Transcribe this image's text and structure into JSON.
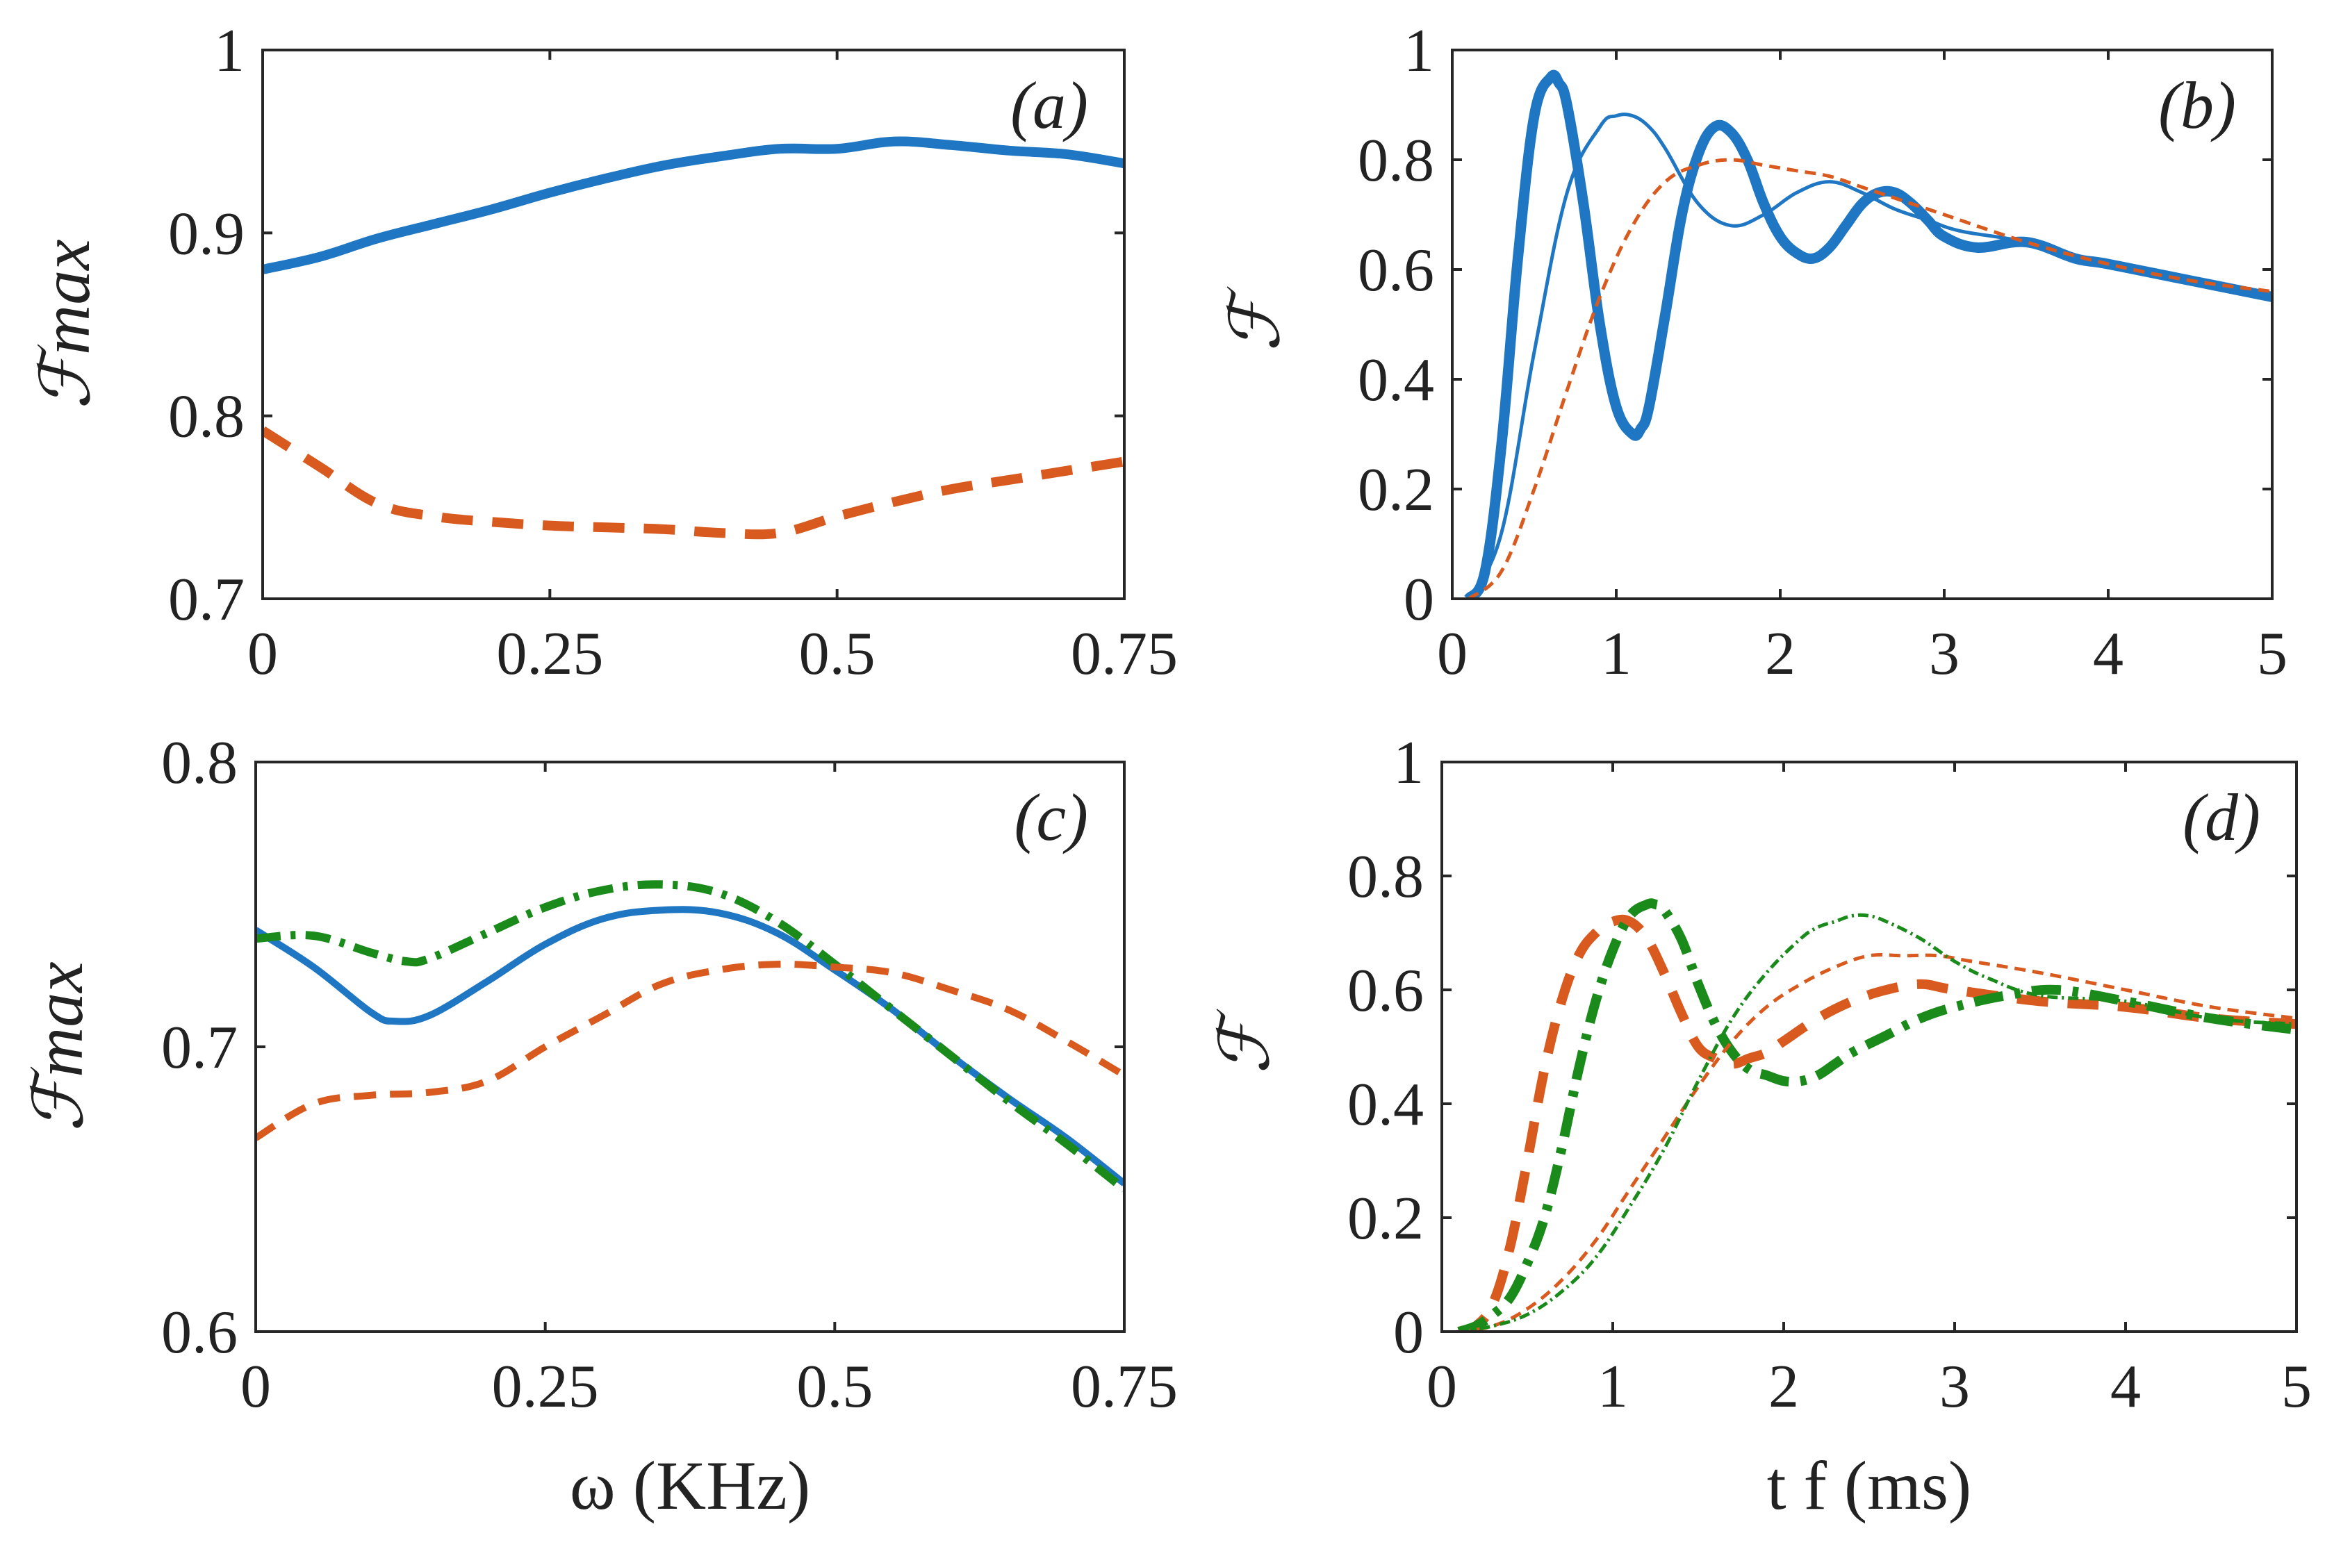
{
  "figure": {
    "title": ""
  },
  "chart_data": [
    {
      "panel": "a",
      "type": "line",
      "panel_label": "(a)",
      "xlabel": "",
      "ylabel": "ℱmax",
      "xlim": [
        0,
        0.75
      ],
      "ylim": [
        0.7,
        1.0
      ],
      "xticks": [
        0,
        0.25,
        0.5,
        0.75
      ],
      "xtick_labels": [
        "0",
        "0.25",
        "0.5",
        "0.75"
      ],
      "yticks": [
        0.7,
        0.8,
        0.9,
        1.0
      ],
      "ytick_labels": [
        "0.7",
        "0.8",
        "0.9",
        "1"
      ],
      "series": [
        {
          "name": "solid",
          "color": "#1f77c4",
          "style": "solid",
          "width": 14,
          "x": [
            0,
            0.05,
            0.1,
            0.15,
            0.2,
            0.25,
            0.3,
            0.35,
            0.4,
            0.45,
            0.5,
            0.55,
            0.6,
            0.65,
            0.7,
            0.75
          ],
          "y": [
            0.88,
            0.887,
            0.897,
            0.905,
            0.913,
            0.922,
            0.93,
            0.937,
            0.942,
            0.946,
            0.946,
            0.95,
            0.948,
            0.945,
            0.943,
            0.938
          ]
        },
        {
          "name": "dashed",
          "color": "#d85a1e",
          "style": "dashed",
          "width": 14,
          "x": [
            0,
            0.05,
            0.1,
            0.15,
            0.2,
            0.25,
            0.3,
            0.35,
            0.4,
            0.45,
            0.5,
            0.55,
            0.6,
            0.65,
            0.7,
            0.75
          ],
          "y": [
            0.792,
            0.772,
            0.752,
            0.745,
            0.742,
            0.74,
            0.739,
            0.738,
            0.736,
            0.736,
            0.745,
            0.753,
            0.76,
            0.765,
            0.77,
            0.775
          ]
        }
      ]
    },
    {
      "panel": "b",
      "type": "line",
      "panel_label": "(b)",
      "xlabel": "",
      "ylabel": "ℱ",
      "xlim": [
        0,
        5
      ],
      "ylim": [
        0,
        1
      ],
      "xticks": [
        0,
        1,
        2,
        3,
        4,
        5
      ],
      "xtick_labels": [
        "0",
        "1",
        "2",
        "3",
        "4",
        "5"
      ],
      "yticks": [
        0,
        0.2,
        0.4,
        0.6,
        0.8,
        1.0
      ],
      "ytick_labels": [
        "0",
        "0.2",
        "0.4",
        "0.6",
        "0.8",
        "1"
      ],
      "series": [
        {
          "name": "thick solid",
          "color": "#1f77c4",
          "style": "solid",
          "width": 15,
          "x": [
            0.1,
            0.2,
            0.3,
            0.4,
            0.5,
            0.6,
            0.65,
            0.7,
            0.8,
            0.9,
            1.0,
            1.1,
            1.15,
            1.2,
            1.3,
            1.4,
            1.5,
            1.6,
            1.7,
            1.8,
            1.9,
            2.0,
            2.1,
            2.2,
            2.3,
            2.4,
            2.5,
            2.6,
            2.7,
            2.8,
            2.9,
            3.0,
            3.2,
            3.5,
            3.8,
            4.0,
            4.5,
            5.0
          ],
          "y": [
            0.0,
            0.05,
            0.28,
            0.62,
            0.88,
            0.95,
            0.94,
            0.9,
            0.72,
            0.5,
            0.35,
            0.3,
            0.31,
            0.35,
            0.52,
            0.7,
            0.81,
            0.86,
            0.85,
            0.8,
            0.72,
            0.66,
            0.63,
            0.62,
            0.64,
            0.68,
            0.72,
            0.74,
            0.74,
            0.72,
            0.69,
            0.66,
            0.64,
            0.65,
            0.62,
            0.61,
            0.58,
            0.55
          ]
        },
        {
          "name": "thin solid",
          "color": "#1f77c4",
          "style": "solid",
          "width": 5,
          "x": [
            0.1,
            0.3,
            0.5,
            0.7,
            0.9,
            1.0,
            1.1,
            1.2,
            1.3,
            1.5,
            1.7,
            1.9,
            2.1,
            2.3,
            2.5,
            2.7,
            2.9,
            3.1,
            3.5,
            4.0,
            4.5,
            5.0
          ],
          "y": [
            0.0,
            0.12,
            0.45,
            0.74,
            0.86,
            0.88,
            0.88,
            0.86,
            0.82,
            0.72,
            0.68,
            0.7,
            0.74,
            0.76,
            0.74,
            0.71,
            0.69,
            0.67,
            0.65,
            0.61,
            0.58,
            0.55
          ]
        },
        {
          "name": "thin dashed",
          "color": "#d85a1e",
          "style": "dashed",
          "width": 5,
          "x": [
            0.1,
            0.3,
            0.5,
            0.7,
            0.9,
            1.1,
            1.3,
            1.5,
            1.7,
            1.9,
            2.1,
            2.3,
            2.5,
            2.7,
            3.0,
            3.5,
            4.0,
            4.5,
            5.0
          ],
          "y": [
            0.0,
            0.05,
            0.2,
            0.38,
            0.55,
            0.68,
            0.76,
            0.79,
            0.8,
            0.79,
            0.78,
            0.77,
            0.75,
            0.73,
            0.7,
            0.65,
            0.61,
            0.58,
            0.56
          ]
        }
      ]
    },
    {
      "panel": "c",
      "type": "line",
      "panel_label": "(c)",
      "xlabel": "ω (KHz)",
      "ylabel": "ℱmax",
      "xlim": [
        0,
        0.75
      ],
      "ylim": [
        0.6,
        0.8
      ],
      "xticks": [
        0,
        0.25,
        0.5,
        0.75
      ],
      "xtick_labels": [
        "0",
        "0.25",
        "0.5",
        "0.75"
      ],
      "yticks": [
        0.6,
        0.7,
        0.8
      ],
      "ytick_labels": [
        "0.6",
        "0.7",
        "0.8"
      ],
      "series": [
        {
          "name": "solid",
          "color": "#1f77c4",
          "style": "solid",
          "width": 10,
          "x": [
            0,
            0.05,
            0.1,
            0.12,
            0.15,
            0.2,
            0.25,
            0.3,
            0.35,
            0.4,
            0.45,
            0.5,
            0.55,
            0.6,
            0.65,
            0.7,
            0.75
          ],
          "y": [
            0.741,
            0.728,
            0.712,
            0.709,
            0.711,
            0.723,
            0.736,
            0.745,
            0.748,
            0.747,
            0.74,
            0.727,
            0.713,
            0.697,
            0.682,
            0.668,
            0.652
          ]
        },
        {
          "name": "dash-dot",
          "color": "#1a8a1a",
          "style": "dashdot",
          "width": 12,
          "x": [
            0,
            0.05,
            0.1,
            0.13,
            0.15,
            0.2,
            0.25,
            0.3,
            0.35,
            0.4,
            0.45,
            0.5,
            0.55,
            0.6,
            0.65,
            0.7,
            0.75
          ],
          "y": [
            0.738,
            0.739,
            0.733,
            0.73,
            0.731,
            0.74,
            0.749,
            0.755,
            0.757,
            0.754,
            0.744,
            0.729,
            0.713,
            0.697,
            0.681,
            0.666,
            0.65
          ]
        },
        {
          "name": "dashed",
          "color": "#d85a1e",
          "style": "dashed",
          "width": 10,
          "x": [
            0,
            0.05,
            0.1,
            0.15,
            0.2,
            0.25,
            0.3,
            0.35,
            0.4,
            0.45,
            0.5,
            0.55,
            0.6,
            0.65,
            0.7,
            0.75
          ],
          "y": [
            0.668,
            0.68,
            0.683,
            0.684,
            0.688,
            0.7,
            0.711,
            0.722,
            0.727,
            0.729,
            0.728,
            0.726,
            0.72,
            0.713,
            0.702,
            0.69
          ]
        }
      ]
    },
    {
      "panel": "d",
      "type": "line",
      "panel_label": "(d)",
      "xlabel": "t f (ms)",
      "ylabel": "ℱ",
      "xlim": [
        0,
        5
      ],
      "ylim": [
        0,
        1
      ],
      "xticks": [
        0,
        1,
        2,
        3,
        4,
        5
      ],
      "xtick_labels": [
        "0",
        "1",
        "2",
        "3",
        "4",
        "5"
      ],
      "yticks": [
        0,
        0.2,
        0.4,
        0.6,
        0.8,
        1.0
      ],
      "ytick_labels": [
        "0",
        "0.2",
        "0.4",
        "0.6",
        "0.8",
        "1"
      ],
      "series": [
        {
          "name": "thick dashed",
          "color": "#d85a1e",
          "style": "dashed",
          "width": 14,
          "x": [
            0.1,
            0.2,
            0.3,
            0.4,
            0.5,
            0.6,
            0.7,
            0.8,
            0.9,
            1.0,
            1.1,
            1.2,
            1.3,
            1.4,
            1.5,
            1.6,
            1.7,
            1.8,
            1.9,
            2.0,
            2.2,
            2.4,
            2.6,
            2.8,
            3.0,
            3.5,
            4.0,
            4.5,
            5.0
          ],
          "y": [
            0.0,
            0.01,
            0.05,
            0.15,
            0.3,
            0.46,
            0.58,
            0.66,
            0.7,
            0.72,
            0.72,
            0.69,
            0.63,
            0.56,
            0.5,
            0.48,
            0.47,
            0.48,
            0.49,
            0.51,
            0.55,
            0.58,
            0.6,
            0.61,
            0.6,
            0.58,
            0.57,
            0.55,
            0.54
          ]
        },
        {
          "name": "thick dash-dot",
          "color": "#1a8a1a",
          "style": "dashdot",
          "width": 14,
          "x": [
            0.1,
            0.2,
            0.3,
            0.4,
            0.5,
            0.6,
            0.7,
            0.8,
            0.9,
            1.0,
            1.1,
            1.2,
            1.25,
            1.3,
            1.4,
            1.5,
            1.6,
            1.7,
            1.8,
            1.9,
            2.0,
            2.1,
            2.2,
            2.3,
            2.4,
            2.6,
            2.8,
            3.0,
            3.3,
            3.6,
            4.0,
            4.5,
            5.0
          ],
          "y": [
            0.0,
            0.01,
            0.03,
            0.06,
            0.12,
            0.2,
            0.32,
            0.46,
            0.58,
            0.67,
            0.73,
            0.75,
            0.75,
            0.74,
            0.69,
            0.61,
            0.54,
            0.49,
            0.46,
            0.45,
            0.44,
            0.44,
            0.45,
            0.47,
            0.49,
            0.52,
            0.55,
            0.57,
            0.59,
            0.6,
            0.58,
            0.55,
            0.53
          ]
        },
        {
          "name": "thin dashed",
          "color": "#d85a1e",
          "style": "dashed",
          "width": 5,
          "x": [
            0.1,
            0.3,
            0.5,
            0.7,
            0.9,
            1.1,
            1.3,
            1.5,
            1.7,
            1.9,
            2.1,
            2.3,
            2.5,
            2.7,
            2.9,
            3.1,
            3.5,
            4.0,
            4.5,
            5.0
          ],
          "y": [
            0.0,
            0.01,
            0.04,
            0.09,
            0.16,
            0.25,
            0.34,
            0.43,
            0.51,
            0.57,
            0.61,
            0.64,
            0.66,
            0.66,
            0.66,
            0.65,
            0.63,
            0.6,
            0.57,
            0.55
          ]
        },
        {
          "name": "thin dash-dot",
          "color": "#1a8a1a",
          "style": "dashdot",
          "width": 5,
          "x": [
            0.1,
            0.3,
            0.5,
            0.7,
            0.9,
            1.1,
            1.3,
            1.5,
            1.7,
            1.9,
            2.1,
            2.2,
            2.3,
            2.4,
            2.5,
            2.6,
            2.8,
            3.0,
            3.2,
            3.5,
            4.0,
            4.5,
            5.0
          ],
          "y": [
            0.0,
            0.01,
            0.03,
            0.07,
            0.13,
            0.22,
            0.32,
            0.44,
            0.55,
            0.63,
            0.69,
            0.71,
            0.72,
            0.73,
            0.73,
            0.72,
            0.69,
            0.65,
            0.62,
            0.59,
            0.58,
            0.55,
            0.54
          ]
        }
      ]
    }
  ]
}
